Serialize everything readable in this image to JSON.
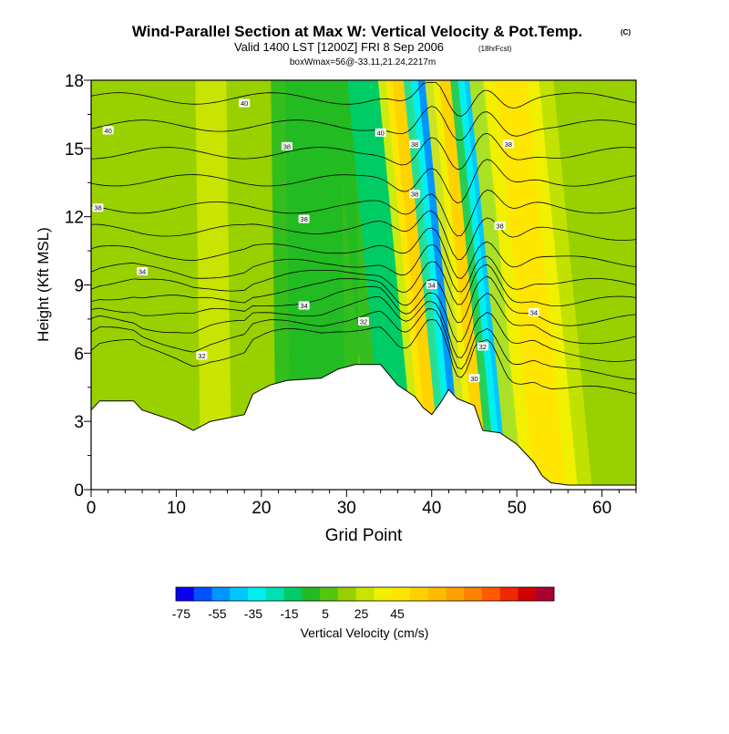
{
  "header": {
    "title": "Wind-Parallel Section at Max W: Vertical Velocity & Pot.Temp.",
    "copyright": "(C)",
    "valid_line": "Valid 1400 LST [1200Z] FRI 8 Sep 2006",
    "forecast": "(18hrFcst)",
    "box_line": "boxWmax=56@-33.11,21.24,2217m"
  },
  "chart_data": {
    "type": "heatmap",
    "title": "Wind-Parallel Section at Max W: Vertical Velocity & Pot.Temp.",
    "xlabel": "Grid Point",
    "ylabel": "Height (Kft MSL)",
    "xlim": [
      0,
      64
    ],
    "ylim": [
      0,
      18
    ],
    "x_ticks": [
      0,
      10,
      20,
      30,
      40,
      50,
      60
    ],
    "y_ticks": [
      0,
      3,
      6,
      9,
      12,
      15,
      18
    ],
    "terrain": [
      [
        0,
        3.5
      ],
      [
        1,
        3.9
      ],
      [
        5,
        3.9
      ],
      [
        6,
        3.5
      ],
      [
        10,
        3.0
      ],
      [
        12,
        2.6
      ],
      [
        14,
        3.0
      ],
      [
        18,
        3.3
      ],
      [
        19,
        4.2
      ],
      [
        21,
        4.6
      ],
      [
        23,
        4.8
      ],
      [
        27,
        4.9
      ],
      [
        29,
        5.3
      ],
      [
        31,
        5.5
      ],
      [
        34,
        5.5
      ],
      [
        36,
        4.6
      ],
      [
        38,
        4.1
      ],
      [
        39,
        3.6
      ],
      [
        40,
        3.3
      ],
      [
        41,
        3.8
      ],
      [
        42,
        4.4
      ],
      [
        43,
        4.0
      ],
      [
        45,
        3.7
      ],
      [
        46,
        2.6
      ],
      [
        48,
        2.5
      ],
      [
        50,
        2.0
      ],
      [
        52,
        1.2
      ],
      [
        53,
        0.6
      ],
      [
        54,
        0.3
      ],
      [
        56,
        0.2
      ],
      [
        64,
        0.2
      ]
    ],
    "velocity_bands": [
      {
        "name": "background",
        "value": 5
      },
      {
        "name": "updraft-west",
        "center_x": 14.5,
        "value": 20
      },
      {
        "name": "downdraft-ridge",
        "center_x": 26.5,
        "value": -12
      },
      {
        "name": "downdraft-lee",
        "center_x": 36.5,
        "value": -25
      },
      {
        "name": "updraft-main",
        "center_x": 39.5,
        "value": 50
      },
      {
        "name": "downdraft-core",
        "center_x": 42.5,
        "value": -60
      },
      {
        "name": "updraft-secondary",
        "center_x": 45,
        "value": 45
      },
      {
        "name": "downdraft-secondary",
        "center_x": 48,
        "value": -55
      },
      {
        "name": "updraft-east",
        "center_x": 52.5,
        "value": 40
      }
    ],
    "contours": {
      "variable": "Potential Temperature",
      "labels": [
        {
          "value": "40",
          "x": 18,
          "y": 17.0
        },
        {
          "value": "40",
          "x": 2,
          "y": 15.8
        },
        {
          "value": "40",
          "x": 34,
          "y": 15.7
        },
        {
          "value": "38",
          "x": 23,
          "y": 15.1
        },
        {
          "value": "38",
          "x": 38,
          "y": 15.2
        },
        {
          "value": "38",
          "x": 49,
          "y": 15.2
        },
        {
          "value": "38",
          "x": 0.8,
          "y": 12.4
        },
        {
          "value": "38",
          "x": 25,
          "y": 11.9
        },
        {
          "value": "38",
          "x": 38,
          "y": 13.0
        },
        {
          "value": "38",
          "x": 48,
          "y": 11.6
        },
        {
          "value": "34",
          "x": 6,
          "y": 9.6
        },
        {
          "value": "34",
          "x": 25,
          "y": 8.1
        },
        {
          "value": "34",
          "x": 40,
          "y": 9.0
        },
        {
          "value": "34",
          "x": 52,
          "y": 7.8
        },
        {
          "value": "32",
          "x": 13,
          "y": 5.9
        },
        {
          "value": "32",
          "x": 32,
          "y": 7.4
        },
        {
          "value": "32",
          "x": 46,
          "y": 6.3
        },
        {
          "value": "30",
          "x": 45,
          "y": 4.9
        }
      ]
    },
    "colorbar": {
      "label": "Vertical Velocity (cm/s)",
      "colors": [
        "#0a00f0",
        "#0050ff",
        "#0096ff",
        "#00c8ff",
        "#00f0f0",
        "#00e0b0",
        "#00cc66",
        "#22bb22",
        "#55c60e",
        "#99d000",
        "#c8e400",
        "#f0f000",
        "#ffe600",
        "#ffd200",
        "#ffbb00",
        "#ffa000",
        "#ff8200",
        "#ff5a00",
        "#f02800",
        "#d00000",
        "#aa0030"
      ],
      "tick_labels": [
        "-75",
        "-55",
        "-35",
        "-15",
        "5",
        "25",
        "45"
      ],
      "tick_positions": [
        0,
        2,
        4,
        6,
        8,
        10,
        12
      ]
    }
  }
}
